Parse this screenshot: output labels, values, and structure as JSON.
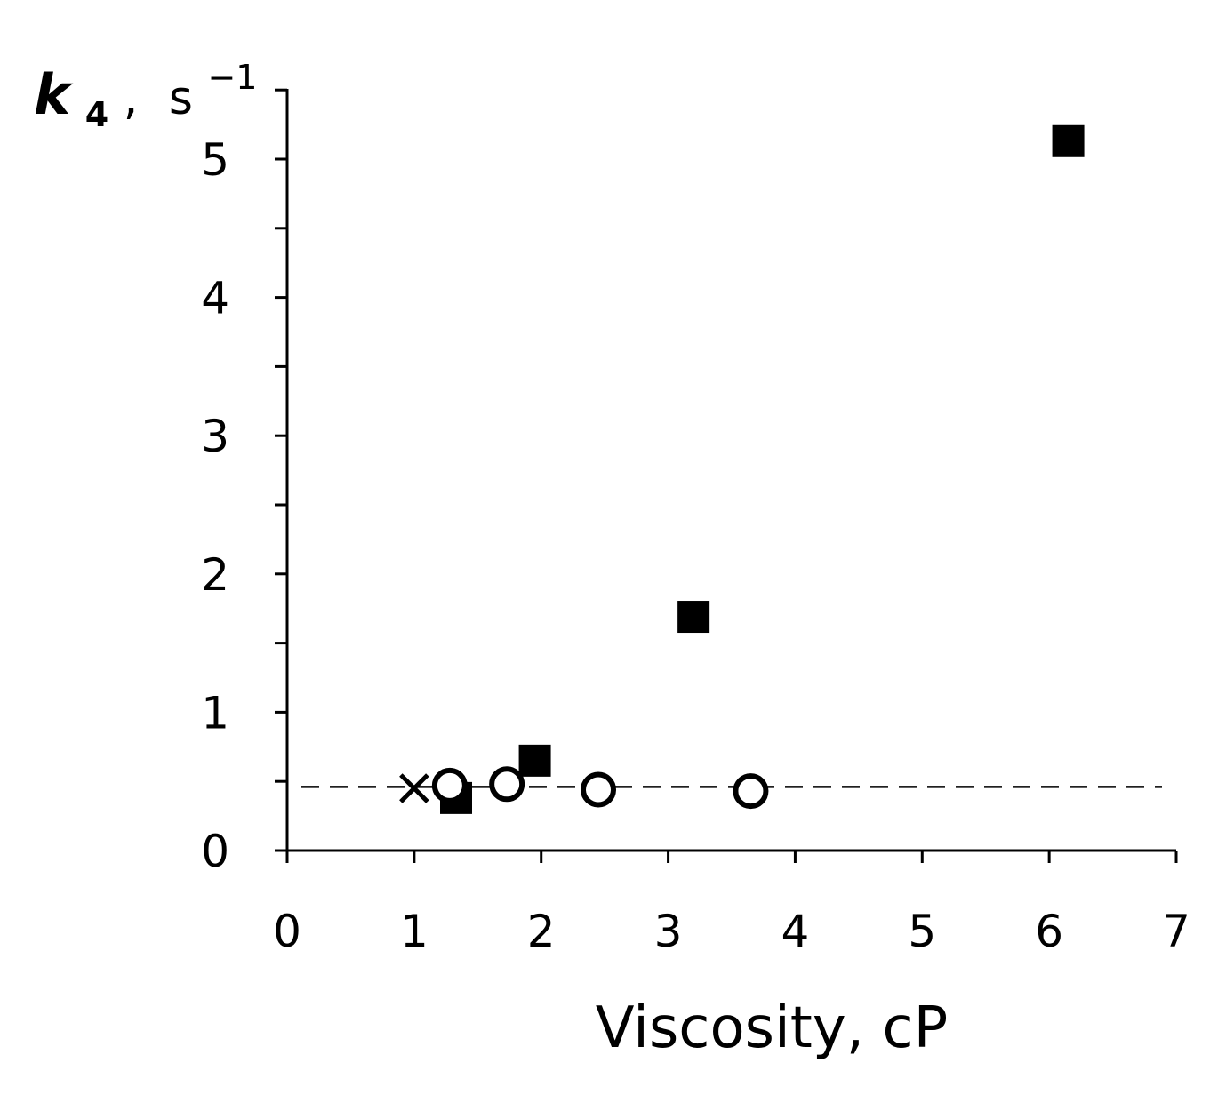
{
  "chart_data": {
    "type": "scatter",
    "xlabel": "Viscosity, cP",
    "ylabel": {
      "symbol": "k",
      "subscript": "4",
      "separator": ",",
      "unit": "s",
      "unit_exponent": "−1"
    },
    "xlim": [
      0,
      7
    ],
    "ylim": [
      0,
      5.5
    ],
    "x_ticks": [
      "0",
      "1",
      "2",
      "3",
      "4",
      "5",
      "6",
      "7"
    ],
    "y_ticks": [
      "0",
      "1",
      "2",
      "3",
      "4",
      "5"
    ],
    "y_minor_step": 0.5,
    "grid": false,
    "legend": "none",
    "reference_line": {
      "y": 0.46,
      "style": "dashed",
      "x_range": [
        0,
        7
      ]
    },
    "series": [
      {
        "marker": "filled-square",
        "color": "#000000",
        "points": [
          [
            1.33,
            0.38
          ],
          [
            1.95,
            0.65
          ],
          [
            3.2,
            1.69
          ],
          [
            6.15,
            5.13
          ]
        ]
      },
      {
        "marker": "open-circle",
        "color": "#000000",
        "points": [
          [
            1.28,
            0.47
          ],
          [
            1.73,
            0.48
          ],
          [
            2.45,
            0.44
          ],
          [
            3.65,
            0.43
          ]
        ]
      },
      {
        "marker": "cross",
        "color": "#000000",
        "points": [
          [
            1.0,
            0.45
          ]
        ]
      }
    ]
  }
}
